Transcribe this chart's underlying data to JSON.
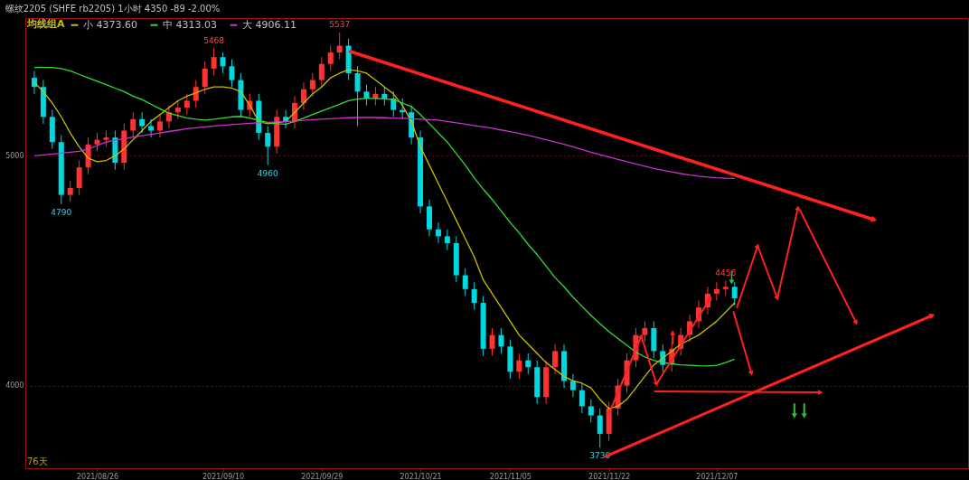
{
  "chart_data": {
    "type": "candlestick",
    "title": "螺纹2205 (SHFE rb2205)  1小时  4350  -89 -2.00%",
    "legend_title": "均线组A",
    "categories": [
      null,
      null,
      null,
      null,
      null,
      null,
      null,
      "2021/08/26",
      null,
      null,
      null,
      null,
      null,
      null,
      null,
      null,
      null,
      null,
      null,
      null,
      null,
      "2021/09/10",
      null,
      null,
      null,
      null,
      null,
      null,
      null,
      null,
      null,
      null,
      "2021/09/29",
      null,
      null,
      null,
      null,
      null,
      null,
      null,
      null,
      null,
      null,
      "2021/10/21",
      null,
      null,
      null,
      null,
      null,
      null,
      null,
      null,
      null,
      "2021/11/05",
      null,
      null,
      null,
      null,
      null,
      null,
      null,
      null,
      null,
      null,
      "2021/11/22",
      null,
      null,
      null,
      null,
      null,
      null,
      null,
      null,
      null,
      null,
      null,
      "2021/12/07",
      null,
      null,
      null,
      null,
      null,
      null,
      null,
      null,
      null,
      null,
      null,
      null,
      null,
      null,
      null,
      null,
      null,
      null,
      null,
      null,
      null,
      null,
      null,
      null,
      null,
      null,
      null
    ],
    "ohlc": [
      [
        5340,
        5370,
        5270,
        5300
      ],
      [
        5300,
        5330,
        5140,
        5170
      ],
      [
        5170,
        5200,
        5030,
        5060
      ],
      [
        5060,
        5090,
        4790,
        4830
      ],
      [
        4830,
        4890,
        4800,
        4860
      ],
      [
        4860,
        4980,
        4830,
        4950
      ],
      [
        4950,
        5080,
        4920,
        5050
      ],
      [
        5050,
        5100,
        5020,
        5070
      ],
      [
        5070,
        5110,
        5040,
        5080
      ],
      [
        5080,
        5110,
        4940,
        4970
      ],
      [
        4970,
        5140,
        4940,
        5110
      ],
      [
        5110,
        5190,
        5080,
        5160
      ],
      [
        5160,
        5190,
        5100,
        5130
      ],
      [
        5130,
        5160,
        5080,
        5110
      ],
      [
        5110,
        5180,
        5080,
        5150
      ],
      [
        5150,
        5220,
        5120,
        5190
      ],
      [
        5190,
        5240,
        5160,
        5210
      ],
      [
        5210,
        5270,
        5180,
        5240
      ],
      [
        5240,
        5330,
        5210,
        5300
      ],
      [
        5300,
        5410,
        5270,
        5380
      ],
      [
        5380,
        5468,
        5350,
        5430
      ],
      [
        5430,
        5450,
        5360,
        5390
      ],
      [
        5390,
        5420,
        5300,
        5330
      ],
      [
        5330,
        5360,
        5170,
        5200
      ],
      [
        5200,
        5270,
        5170,
        5240
      ],
      [
        5240,
        5270,
        5070,
        5100
      ],
      [
        5100,
        5130,
        4960,
        5040
      ],
      [
        5040,
        5200,
        5010,
        5170
      ],
      [
        5170,
        5200,
        5120,
        5150
      ],
      [
        5150,
        5260,
        5120,
        5230
      ],
      [
        5230,
        5320,
        5200,
        5290
      ],
      [
        5290,
        5360,
        5260,
        5330
      ],
      [
        5330,
        5430,
        5300,
        5400
      ],
      [
        5400,
        5480,
        5370,
        5450
      ],
      [
        5450,
        5537,
        5420,
        5480
      ],
      [
        5480,
        5510,
        5330,
        5360
      ],
      [
        5360,
        5390,
        5130,
        5280
      ],
      [
        5280,
        5310,
        5220,
        5250
      ],
      [
        5250,
        5300,
        5220,
        5270
      ],
      [
        5270,
        5300,
        5220,
        5250
      ],
      [
        5250,
        5280,
        5170,
        5200
      ],
      [
        5200,
        5250,
        5160,
        5190
      ],
      [
        5190,
        5220,
        5050,
        5080
      ],
      [
        5080,
        5110,
        4750,
        4780
      ],
      [
        4780,
        4810,
        4650,
        4680
      ],
      [
        4680,
        4710,
        4620,
        4650
      ],
      [
        4650,
        4680,
        4590,
        4620
      ],
      [
        4620,
        4650,
        4450,
        4480
      ],
      [
        4480,
        4510,
        4390,
        4420
      ],
      [
        4420,
        4450,
        4330,
        4360
      ],
      [
        4360,
        4390,
        4130,
        4160
      ],
      [
        4160,
        4250,
        4130,
        4220
      ],
      [
        4220,
        4250,
        4140,
        4170
      ],
      [
        4170,
        4200,
        4030,
        4060
      ],
      [
        4060,
        4140,
        4030,
        4110
      ],
      [
        4110,
        4140,
        4050,
        4080
      ],
      [
        4080,
        4110,
        3920,
        3950
      ],
      [
        3950,
        4110,
        3920,
        4080
      ],
      [
        4080,
        4180,
        4050,
        4150
      ],
      [
        4150,
        4180,
        3990,
        4020
      ],
      [
        4020,
        4050,
        3950,
        3980
      ],
      [
        3980,
        4010,
        3880,
        3910
      ],
      [
        3910,
        3940,
        3840,
        3870
      ],
      [
        3870,
        3900,
        3730,
        3790
      ],
      [
        3790,
        3930,
        3760,
        3900
      ],
      [
        3900,
        4030,
        3870,
        4000
      ],
      [
        4000,
        4140,
        3970,
        4110
      ],
      [
        4110,
        4250,
        4080,
        4220
      ],
      [
        4220,
        4280,
        4190,
        4250
      ],
      [
        4250,
        4280,
        4120,
        4150
      ],
      [
        4150,
        4180,
        4060,
        4090
      ],
      [
        4090,
        4190,
        4060,
        4160
      ],
      [
        4160,
        4250,
        4130,
        4220
      ],
      [
        4220,
        4310,
        4190,
        4280
      ],
      [
        4280,
        4370,
        4250,
        4340
      ],
      [
        4340,
        4430,
        4310,
        4400
      ],
      [
        4400,
        4450,
        4370,
        4420
      ],
      [
        4420,
        4456,
        4390,
        4430
      ],
      [
        4430,
        4450,
        4350,
        4380
      ],
      null,
      null,
      null,
      null,
      null,
      null,
      null,
      null,
      null,
      null,
      null,
      null,
      null,
      null,
      null,
      null,
      null,
      null,
      null,
      null,
      null,
      null,
      null,
      null,
      null
    ],
    "colors": [
      "#00d8e0",
      "#00d8e0",
      "#00d8e0",
      "#00d8e0",
      "#ff3232",
      "#ff3232",
      "#ff3232",
      "#ff3232",
      "#ff3232",
      "#00d8e0",
      "#ff3232",
      "#ff3232",
      "#00d8e0",
      "#00d8e0",
      "#ff3232",
      "#ff3232",
      "#ff3232",
      "#ff3232",
      "#ff3232",
      "#ff3232",
      "#ff3232",
      "#00d8e0",
      "#00d8e0",
      "#00d8e0",
      "#ff3232",
      "#00d8e0",
      "#00d8e0",
      "#ff3232",
      "#00d8e0",
      "#ff3232",
      "#ff3232",
      "#ff3232",
      "#ff3232",
      "#ff3232",
      "#ff3232",
      "#00d8e0",
      "#00d8e0",
      "#00d8e0",
      "#ff3232",
      "#00d8e0",
      "#00d8e0",
      "#00d8e0",
      "#00d8e0",
      "#00d8e0",
      "#00d8e0",
      "#00d8e0",
      "#00d8e0",
      "#00d8e0",
      "#00d8e0",
      "#00d8e0",
      "#00d8e0",
      "#ff3232",
      "#00d8e0",
      "#00d8e0",
      "#ff3232",
      "#00d8e0",
      "#00d8e0",
      "#ff3232",
      "#ff3232",
      "#00d8e0",
      "#00d8e0",
      "#00d8e0",
      "#00d8e0",
      "#00d8e0",
      "#ff3232",
      "#ff3232",
      "#ff3232",
      "#ff3232",
      "#ff3232",
      "#00d8e0",
      "#00d8e0",
      "#ff3232",
      "#ff3232",
      "#ff3232",
      "#ff3232",
      "#ff3232",
      "#ff3232",
      "#ff3232",
      "#00d8e0",
      null,
      null,
      null,
      null,
      null,
      null,
      null,
      null,
      null,
      null,
      null,
      null,
      null,
      null,
      null,
      null,
      null,
      null,
      null,
      null,
      null,
      null,
      null,
      null,
      null
    ],
    "series": [
      {
        "type": "line",
        "name": "小 4373.60",
        "color": "#c8c000",
        "values": [
          5320,
          5280,
          5230,
          5170,
          5100,
          5040,
          4990,
          4975,
          4980,
          5000,
          5030,
          5070,
          5110,
          5150,
          5180,
          5210,
          5240,
          5260,
          5275,
          5290,
          5300,
          5300,
          5295,
          5280,
          5220,
          5150,
          5140,
          5145,
          5150,
          5190,
          5230,
          5270,
          5300,
          5340,
          5360,
          5375,
          5370,
          5360,
          5330,
          5300,
          5270,
          5220,
          5150,
          5040,
          4960,
          4880,
          4800,
          4720,
          4640,
          4560,
          4460,
          4400,
          4340,
          4280,
          4220,
          4180,
          4140,
          4100,
          4070,
          4040,
          4020,
          4010,
          3990,
          3940,
          3900,
          3910,
          3940,
          3990,
          4040,
          4090,
          4120,
          4150,
          4180,
          4200,
          4220,
          4250,
          4280,
          4320,
          4360,
          null,
          null,
          null,
          null,
          null,
          null,
          null,
          null,
          null,
          null,
          null,
          null,
          null,
          null,
          null,
          null,
          null,
          null,
          null,
          null,
          null,
          null,
          null,
          null,
          null
        ]
      },
      {
        "type": "line",
        "name": "中 4313.03",
        "color": "#33dd33",
        "values": [
          5385,
          5385,
          5385,
          5380,
          5370,
          5355,
          5340,
          5325,
          5310,
          5295,
          5280,
          5260,
          5245,
          5225,
          5205,
          5185,
          5175,
          5165,
          5160,
          5156,
          5160,
          5165,
          5170,
          5172,
          5165,
          5155,
          5145,
          5140,
          5138,
          5150,
          5165,
          5180,
          5195,
          5210,
          5225,
          5240,
          5247,
          5250,
          5250,
          5248,
          5245,
          5230,
          5215,
          5180,
          5140,
          5100,
          5060,
          5010,
          4960,
          4905,
          4855,
          4810,
          4760,
          4710,
          4665,
          4615,
          4570,
          4520,
          4470,
          4430,
          4385,
          4345,
          4305,
          4270,
          4235,
          4205,
          4175,
          4145,
          4125,
          4110,
          4100,
          4095,
          4090,
          4088,
          4086,
          4085,
          4088,
          4100,
          4115,
          null,
          null,
          null,
          null,
          null,
          null,
          null,
          null,
          null,
          null,
          null,
          null,
          null,
          null,
          null,
          null,
          null,
          null,
          null,
          null,
          null,
          null,
          null,
          null,
          null
        ]
      },
      {
        "type": "line",
        "name": "大 4906.11",
        "color": "#cc33cc",
        "values": [
          5000,
          5004,
          5008,
          5012,
          5016,
          5020,
          5030,
          5045,
          5060,
          5068,
          5075,
          5082,
          5088,
          5094,
          5100,
          5106,
          5112,
          5118,
          5122,
          5126,
          5130,
          5133,
          5136,
          5139,
          5142,
          5144,
          5146,
          5148,
          5150,
          5152,
          5155,
          5158,
          5160,
          5162,
          5164,
          5166,
          5167,
          5167,
          5167,
          5166,
          5165,
          5164,
          5162,
          5160,
          5158,
          5156,
          5150,
          5144,
          5138,
          5132,
          5126,
          5120,
          5113,
          5106,
          5098,
          5090,
          5080,
          5070,
          5060,
          5050,
          5040,
          5028,
          5016,
          5005,
          4995,
          4985,
          4975,
          4965,
          4955,
          4945,
          4937,
          4930,
          4923,
          4917,
          4912,
          4908,
          4905,
          4903,
          4902,
          null,
          null,
          null,
          null,
          null,
          null,
          null,
          null,
          null,
          null,
          null,
          null,
          null,
          null,
          null,
          null,
          null,
          null,
          null,
          null,
          null,
          null,
          null,
          null,
          null
        ]
      }
    ],
    "ylim": [
      3640,
      5600
    ],
    "yticks": [
      4000,
      5000
    ],
    "grid": "y",
    "legend": "top left",
    "annotations": [
      {
        "text": "4790",
        "y": 4790
      },
      {
        "text": "5468",
        "y": 5468
      },
      {
        "text": "4960",
        "y": 4960
      },
      {
        "text": "5537",
        "y": 5537
      },
      {
        "text": "3730",
        "y": 3730
      },
      {
        "text": "4456",
        "y": 4456
      },
      "76天"
    ]
  }
}
